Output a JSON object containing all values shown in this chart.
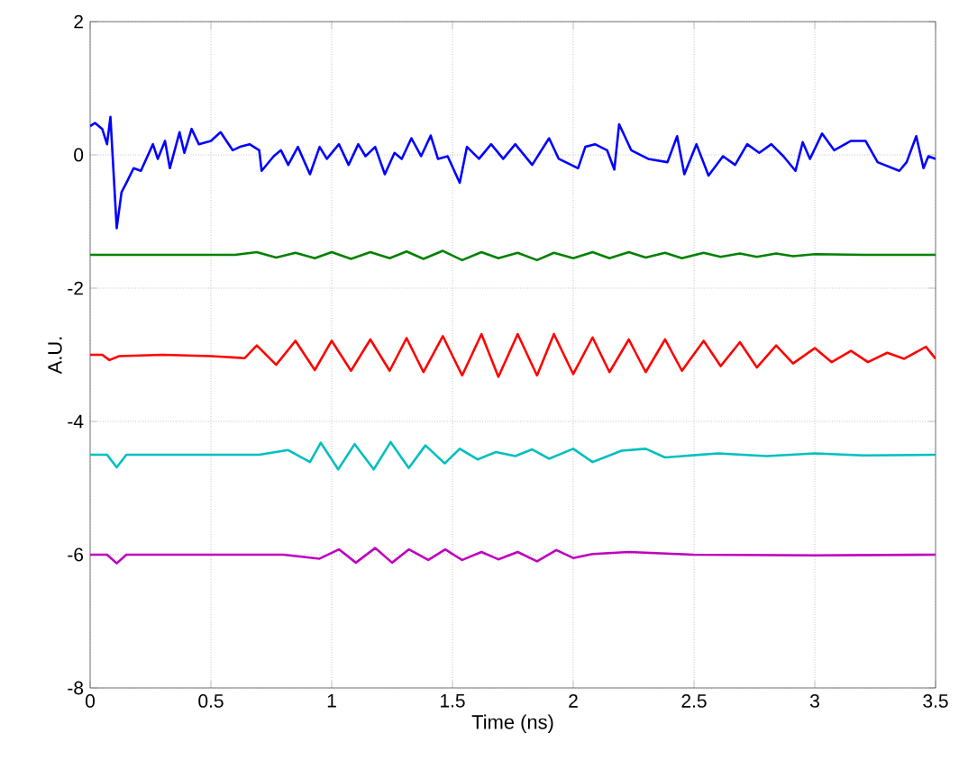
{
  "chart_data": {
    "type": "line",
    "xlabel": "Time (ns)",
    "ylabel": "A.U.",
    "xlim": [
      0,
      3.5
    ],
    "xticks": [
      0,
      0.5,
      1,
      1.5,
      2,
      2.5,
      3,
      3.5
    ],
    "ylim": [
      -8,
      2
    ],
    "yticks": [
      -8,
      -6,
      -4,
      -2,
      0,
      2
    ],
    "grid": true,
    "series": [
      {
        "color": "#0000ff",
        "x": [
          0,
          0.02,
          0.05,
          0.07,
          0.084,
          0.11,
          0.13,
          0.15,
          0.18,
          0.21,
          0.26,
          0.28,
          0.31,
          0.33,
          0.37,
          0.39,
          0.42,
          0.45,
          0.5,
          0.54,
          0.59,
          0.62,
          0.66,
          0.7,
          0.71,
          0.76,
          0.79,
          0.82,
          0.86,
          0.91,
          0.95,
          0.98,
          1.03,
          1.07,
          1.11,
          1.14,
          1.18,
          1.22,
          1.26,
          1.29,
          1.33,
          1.37,
          1.41,
          1.44,
          1.48,
          1.53,
          1.56,
          1.61,
          1.66,
          1.71,
          1.76,
          1.83,
          1.9,
          1.94,
          2.02,
          2.05,
          2.09,
          2.14,
          2.17,
          2.19,
          2.24,
          2.31,
          2.39,
          2.43,
          2.46,
          2.51,
          2.56,
          2.62,
          2.67,
          2.72,
          2.77,
          2.82,
          2.87,
          2.92,
          2.95,
          2.98,
          3.03,
          3.08,
          3.15,
          3.21,
          3.26,
          3.35,
          3.38,
          3.42,
          3.45,
          3.47,
          3.5
        ],
        "values": [
          0.43,
          0.48,
          0.39,
          0.16,
          0.57,
          -1.1,
          -0.56,
          -0.42,
          -0.2,
          -0.24,
          0.16,
          -0.06,
          0.21,
          -0.2,
          0.34,
          0.03,
          0.39,
          0.16,
          0.21,
          0.34,
          0.07,
          0.12,
          0.16,
          0.07,
          -0.24,
          -0.02,
          0.07,
          -0.15,
          0.12,
          -0.29,
          0.12,
          -0.06,
          0.16,
          -0.15,
          0.16,
          -0.02,
          0.12,
          -0.29,
          0.03,
          -0.06,
          0.25,
          -0.02,
          0.29,
          -0.06,
          -0.02,
          -0.42,
          0.12,
          -0.06,
          0.16,
          -0.06,
          0.16,
          -0.15,
          0.25,
          -0.06,
          -0.2,
          0.12,
          0.16,
          0.07,
          -0.22,
          0.46,
          0.07,
          -0.06,
          -0.11,
          0.28,
          -0.29,
          0.16,
          -0.31,
          -0.02,
          -0.15,
          0.16,
          0.03,
          0.16,
          -0.02,
          -0.24,
          0.19,
          -0.06,
          0.32,
          0.07,
          0.21,
          0.21,
          -0.11,
          -0.24,
          -0.11,
          0.28,
          -0.2,
          -0.02,
          -0.06
        ]
      },
      {
        "color": "#008000",
        "x": [
          0,
          0.3,
          0.6,
          0.69,
          0.77,
          0.85,
          0.93,
          1.0,
          1.08,
          1.16,
          1.24,
          1.31,
          1.38,
          1.46,
          1.54,
          1.62,
          1.69,
          1.77,
          1.85,
          1.92,
          2.0,
          2.08,
          2.15,
          2.23,
          2.3,
          2.38,
          2.45,
          2.54,
          2.61,
          2.69,
          2.76,
          2.84,
          2.91,
          3.0,
          3.2,
          3.5
        ],
        "values": [
          -1.5,
          -1.5,
          -1.5,
          -1.46,
          -1.54,
          -1.47,
          -1.55,
          -1.46,
          -1.56,
          -1.46,
          -1.55,
          -1.45,
          -1.56,
          -1.44,
          -1.58,
          -1.46,
          -1.55,
          -1.47,
          -1.58,
          -1.47,
          -1.55,
          -1.46,
          -1.55,
          -1.46,
          -1.54,
          -1.47,
          -1.55,
          -1.47,
          -1.53,
          -1.48,
          -1.53,
          -1.48,
          -1.52,
          -1.49,
          -1.5,
          -1.5
        ]
      },
      {
        "color": "#ff0000",
        "x": [
          0,
          0.05,
          0.08,
          0.12,
          0.3,
          0.5,
          0.64,
          0.69,
          0.77,
          0.85,
          0.93,
          1.0,
          1.08,
          1.16,
          1.24,
          1.31,
          1.38,
          1.46,
          1.54,
          1.62,
          1.69,
          1.77,
          1.85,
          1.92,
          2.0,
          2.08,
          2.15,
          2.23,
          2.3,
          2.38,
          2.45,
          2.54,
          2.61,
          2.69,
          2.76,
          2.84,
          2.91,
          3.0,
          3.07,
          3.15,
          3.22,
          3.3,
          3.37,
          3.46,
          3.5
        ],
        "values": [
          -3.0,
          -3.0,
          -3.08,
          -3.02,
          -3.0,
          -3.02,
          -3.05,
          -2.86,
          -3.15,
          -2.79,
          -3.23,
          -2.79,
          -3.24,
          -2.77,
          -3.24,
          -2.75,
          -3.26,
          -2.72,
          -3.31,
          -2.69,
          -3.33,
          -2.69,
          -3.31,
          -2.69,
          -3.29,
          -2.74,
          -3.26,
          -2.77,
          -3.26,
          -2.77,
          -3.24,
          -2.79,
          -3.17,
          -2.81,
          -3.19,
          -2.86,
          -3.13,
          -2.9,
          -3.11,
          -2.94,
          -3.11,
          -2.97,
          -3.06,
          -2.88,
          -3.06
        ]
      },
      {
        "color": "#00bfbf",
        "x": [
          0,
          0.07,
          0.11,
          0.15,
          0.4,
          0.7,
          0.82,
          0.91,
          0.955,
          1.027,
          1.095,
          1.174,
          1.244,
          1.319,
          1.388,
          1.468,
          1.53,
          1.604,
          1.68,
          1.76,
          1.83,
          1.9,
          2.0,
          2.08,
          2.2,
          2.3,
          2.38,
          2.6,
          2.8,
          3.0,
          3.2,
          3.5
        ],
        "values": [
          -4.5,
          -4.5,
          -4.69,
          -4.5,
          -4.5,
          -4.5,
          -4.43,
          -4.61,
          -4.32,
          -4.72,
          -4.34,
          -4.72,
          -4.31,
          -4.7,
          -4.36,
          -4.63,
          -4.41,
          -4.57,
          -4.46,
          -4.52,
          -4.42,
          -4.56,
          -4.41,
          -4.61,
          -4.44,
          -4.41,
          -4.54,
          -4.48,
          -4.52,
          -4.48,
          -4.51,
          -4.5
        ]
      },
      {
        "color": "#bf00bf",
        "x": [
          0,
          0.07,
          0.11,
          0.15,
          0.4,
          0.8,
          0.95,
          1.03,
          1.1,
          1.18,
          1.25,
          1.32,
          1.4,
          1.47,
          1.54,
          1.62,
          1.69,
          1.77,
          1.85,
          1.93,
          2.0,
          2.08,
          2.23,
          2.5,
          3.0,
          3.5
        ],
        "values": [
          -6.0,
          -6.0,
          -6.13,
          -6.0,
          -6.0,
          -6.0,
          -6.06,
          -5.92,
          -6.12,
          -5.9,
          -6.12,
          -5.92,
          -6.08,
          -5.92,
          -6.08,
          -5.96,
          -6.07,
          -5.96,
          -6.1,
          -5.93,
          -6.05,
          -5.99,
          -5.96,
          -6.0,
          -6.01,
          -6.0
        ]
      }
    ]
  }
}
